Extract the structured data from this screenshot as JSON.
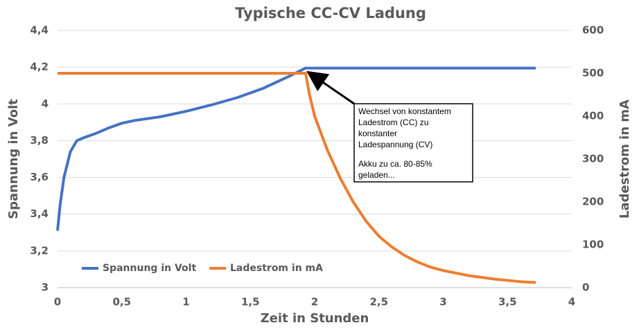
{
  "chart_data": {
    "type": "line",
    "title": "Typische CC-CV Ladung",
    "x_label": "Zeit in Stunden",
    "y_label": "Spannung in Volt",
    "y2_label": "Ladestrom in mA",
    "xlim": [
      0,
      4
    ],
    "xticks": [
      0,
      {
        "value": 0.5,
        "label": "0,5"
      },
      1,
      {
        "value": 1.5,
        "label": "1,5"
      },
      2,
      {
        "value": 2.5,
        "label": "2,5"
      },
      3,
      {
        "value": 3.5,
        "label": "3,5"
      },
      4
    ],
    "ylim": [
      3,
      4.4
    ],
    "yticks": [
      3,
      {
        "value": 3.2,
        "label": "3,2"
      },
      {
        "value": 3.4,
        "label": "3,4"
      },
      {
        "value": 3.6,
        "label": "3,6"
      },
      {
        "value": 3.8,
        "label": "3,8"
      },
      4,
      {
        "value": 4.2,
        "label": "4,2"
      },
      {
        "value": 4.4,
        "label": "4,4"
      }
    ],
    "y2lim": [
      0,
      600
    ],
    "y2ticks": [
      0,
      100,
      200,
      300,
      400,
      500,
      600
    ],
    "grid": true,
    "legend": "bottom-left",
    "series": [
      {
        "name": "Spannung in Volt",
        "color": "#4472c4",
        "axis": "y",
        "x": [
          0,
          0.02,
          0.05,
          0.1,
          0.15,
          0.2,
          0.3,
          0.4,
          0.5,
          0.6,
          0.8,
          1.0,
          1.2,
          1.4,
          1.6,
          1.8,
          1.93,
          2.0,
          3.72
        ],
        "values": [
          3.31,
          3.45,
          3.6,
          3.74,
          3.8,
          3.815,
          3.84,
          3.87,
          3.895,
          3.91,
          3.93,
          3.96,
          3.995,
          4.035,
          4.085,
          4.15,
          4.195,
          4.195,
          4.195
        ]
      },
      {
        "name": "Ladestrom in mA",
        "color": "#ed7d31",
        "axis": "y2",
        "x": [
          0,
          1.93,
          1.96,
          2.0,
          2.1,
          2.2,
          2.3,
          2.4,
          2.5,
          2.6,
          2.7,
          2.8,
          2.9,
          3.0,
          3.2,
          3.4,
          3.6,
          3.72
        ],
        "values": [
          500,
          500,
          450,
          400,
          320,
          255,
          200,
          155,
          120,
          95,
          75,
          60,
          48,
          40,
          28,
          20,
          14,
          12
        ]
      }
    ],
    "annotation": [
      "Wechsel von konstantem",
      "Ladestrom (CC) zu",
      "konstanter",
      "Ladespannung (CV)",
      "Akku zu ca. 80-85%",
      "geladen..."
    ]
  }
}
